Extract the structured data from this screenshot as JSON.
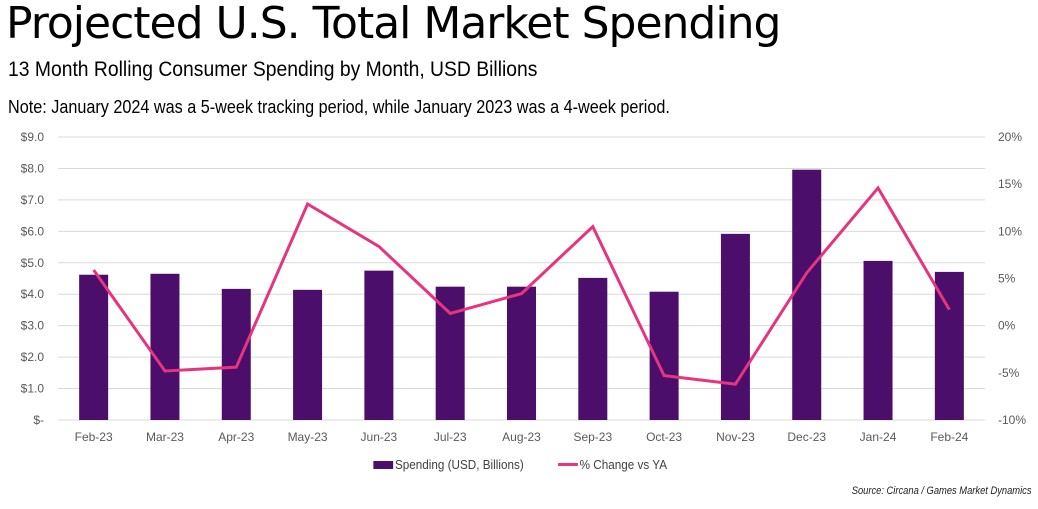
{
  "header": {
    "title": "Projected U.S. Total Market Spending",
    "subtitle": "13 Month Rolling Consumer Spending by Month, USD Billions",
    "note": "Note: January 2024 was a 5-week tracking period, while January 2023 was a 4-week period."
  },
  "footer": {
    "source": "Source: Circana / Games Market Dynamics"
  },
  "colors": {
    "bar": "#4b0e6b",
    "line": "#e6347f",
    "grid": "#d9d9d9"
  },
  "chart_data": {
    "type": "bar",
    "combo": "bar+line (dual axis)",
    "title": "Projected U.S. Total Market Spending",
    "subtitle": "13 Month Rolling Consumer Spending by Month, USD Billions",
    "categories": [
      "Feb-23",
      "Mar-23",
      "Apr-23",
      "May-23",
      "Jun-23",
      "Jul-23",
      "Aug-23",
      "Sep-23",
      "Oct-23",
      "Nov-23",
      "Dec-23",
      "Jan-24",
      "Feb-24"
    ],
    "series": [
      {
        "name": "Spending (USD, Billions)",
        "type": "bar",
        "axis": "left",
        "values": [
          4.62,
          4.65,
          4.17,
          4.14,
          4.75,
          4.24,
          4.24,
          4.52,
          4.08,
          5.92,
          7.96,
          5.06,
          4.71
        ]
      },
      {
        "name": "% Change vs YA",
        "type": "line",
        "axis": "right",
        "values": [
          5.9,
          -4.8,
          -4.4,
          12.9,
          8.4,
          1.3,
          3.4,
          10.5,
          -5.3,
          -6.2,
          5.6,
          14.6,
          1.7
        ]
      }
    ],
    "y_left": {
      "ylim": [
        0,
        9
      ],
      "ticks": [
        0,
        1,
        2,
        3,
        4,
        5,
        6,
        7,
        8,
        9
      ],
      "tick_labels": [
        "$-",
        "$1.0",
        "$2.0",
        "$3.0",
        "$4.0",
        "$5.0",
        "$6.0",
        "$7.0",
        "$8.0",
        "$9.0"
      ]
    },
    "y_right": {
      "ylim": [
        -10,
        20
      ],
      "ticks": [
        -10,
        -5,
        0,
        5,
        10,
        15,
        20
      ],
      "tick_labels": [
        "-10%",
        "-5%",
        "0%",
        "5%",
        "10%",
        "15%",
        "20%"
      ]
    },
    "xlabel": "",
    "ylabel": "",
    "grid": true,
    "legend": {
      "placement": "bottom",
      "entries": [
        "Spending (USD, Billions)",
        "% Change vs YA"
      ]
    }
  }
}
